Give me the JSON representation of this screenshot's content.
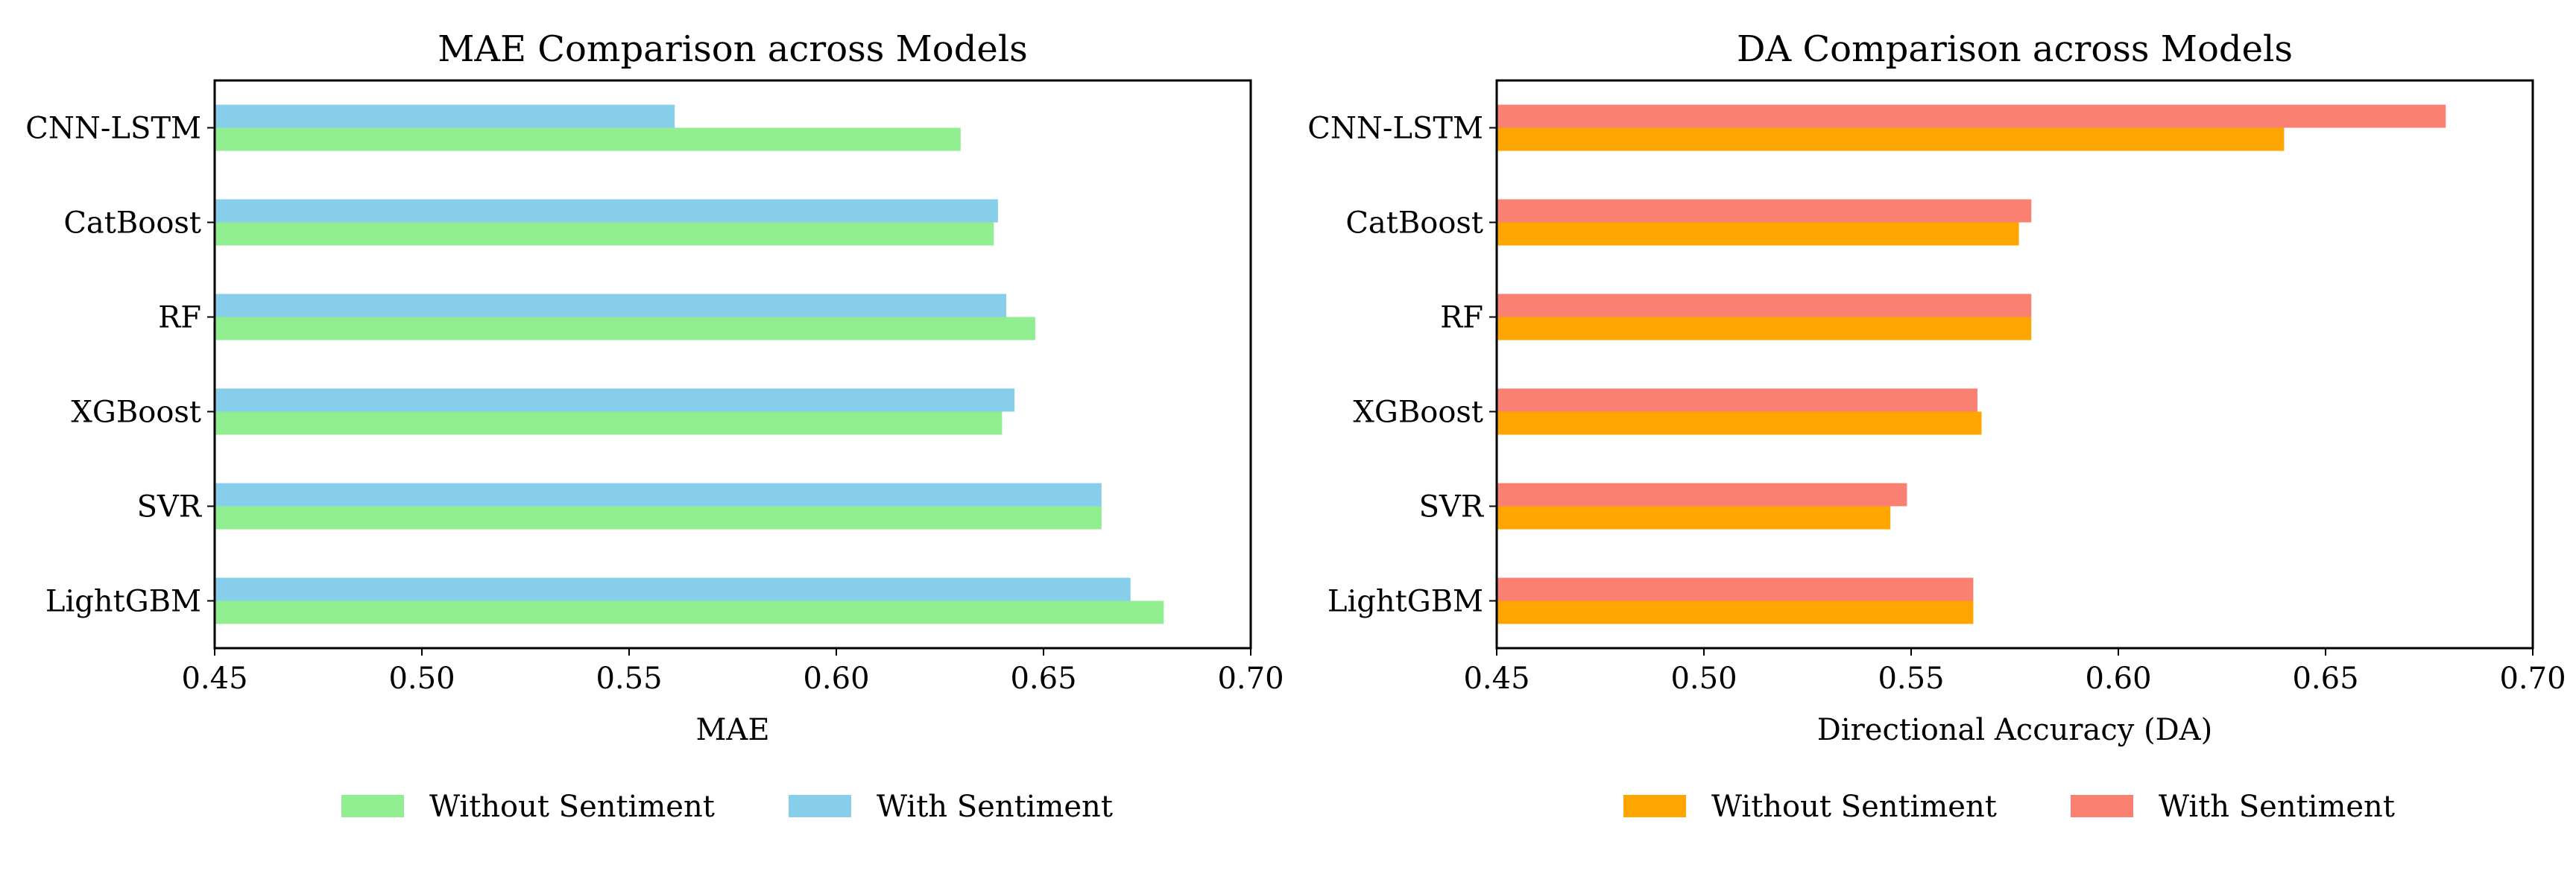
{
  "chart_data": [
    {
      "type": "bar",
      "orientation": "horizontal",
      "title": "MAE Comparison across Models",
      "xlabel": "MAE",
      "ylabel": "",
      "categories": [
        "CNN-LSTM",
        "CatBoost",
        "RF",
        "XGBoost",
        "SVR",
        "LightGBM"
      ],
      "xlim": [
        0.45,
        0.7
      ],
      "xticks": [
        "0.45",
        "0.50",
        "0.55",
        "0.60",
        "0.65",
        "0.70"
      ],
      "series": [
        {
          "name": "Without Sentiment",
          "color": "#90EE90",
          "values": [
            0.63,
            0.638,
            0.648,
            0.64,
            0.664,
            0.679
          ]
        },
        {
          "name": "With Sentiment",
          "color": "#87CEEB",
          "values": [
            0.561,
            0.639,
            0.641,
            0.643,
            0.664,
            0.671
          ]
        }
      ],
      "legend": "bottom-center",
      "grid": false
    },
    {
      "type": "bar",
      "orientation": "horizontal",
      "title": "DA Comparison across Models",
      "xlabel": "Directional Accuracy (DA)",
      "ylabel": "",
      "categories": [
        "CNN-LSTM",
        "CatBoost",
        "RF",
        "XGBoost",
        "SVR",
        "LightGBM"
      ],
      "xlim": [
        0.45,
        0.7
      ],
      "xticks": [
        "0.45",
        "0.50",
        "0.55",
        "0.60",
        "0.65",
        "0.70"
      ],
      "series": [
        {
          "name": "Without Sentiment",
          "color": "#FFA500",
          "values": [
            0.64,
            0.576,
            0.579,
            0.567,
            0.545,
            0.565
          ]
        },
        {
          "name": "With Sentiment",
          "color": "#FA8072",
          "values": [
            0.679,
            0.579,
            0.579,
            0.566,
            0.549,
            0.565
          ]
        }
      ],
      "legend": "bottom-center",
      "grid": false
    }
  ]
}
